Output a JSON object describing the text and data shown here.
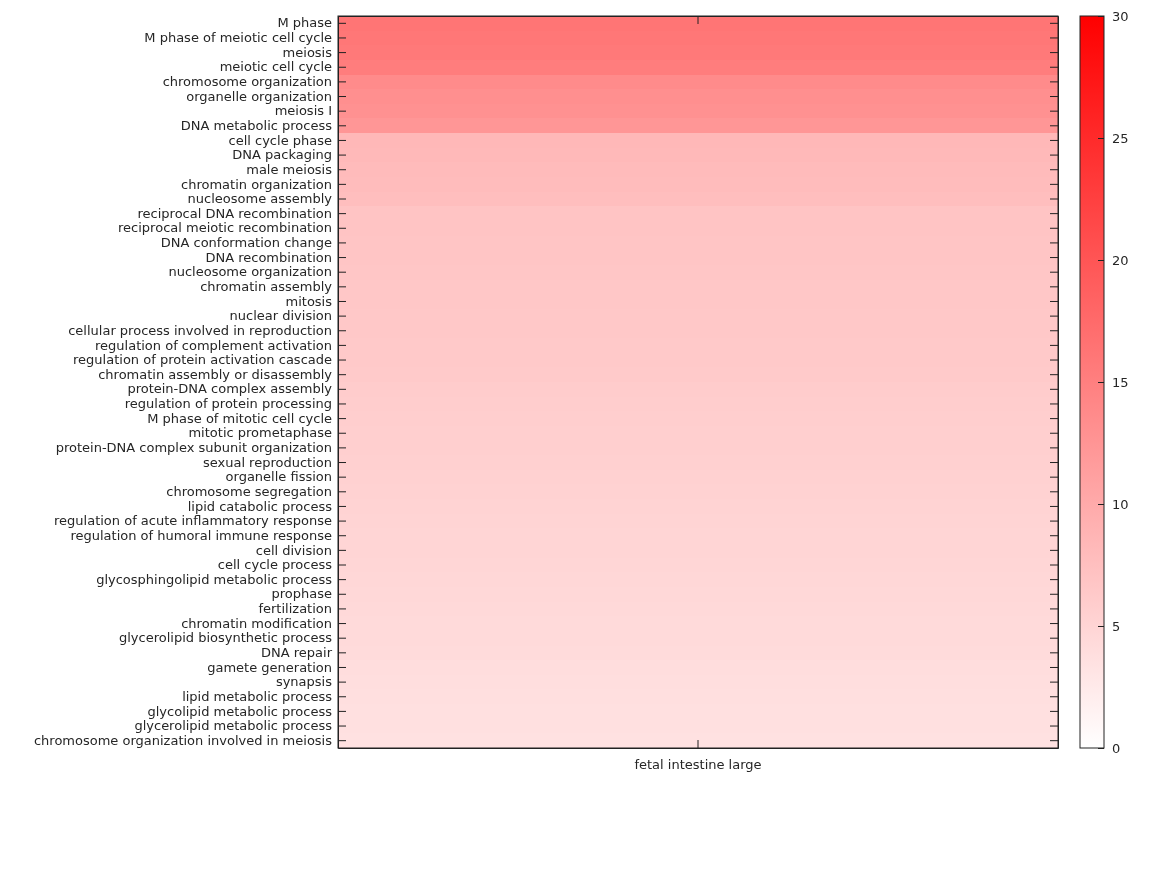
{
  "chart_data": {
    "type": "heatmap",
    "categories": [
      "fetal intestine large"
    ],
    "y_categories": [
      "M phase",
      "M phase of meiotic cell cycle",
      "meiosis",
      "meiotic cell cycle",
      "chromosome organization",
      "organelle organization",
      "meiosis I",
      "DNA metabolic process",
      "cell cycle phase",
      "DNA packaging",
      "male meiosis",
      "chromatin organization",
      "nucleosome assembly",
      "reciprocal DNA recombination",
      "reciprocal meiotic recombination",
      "DNA conformation change",
      "DNA recombination",
      "nucleosome organization",
      "chromatin assembly",
      "mitosis",
      "nuclear division",
      "cellular process involved in reproduction",
      "regulation of complement activation",
      "regulation of protein activation cascade",
      "chromatin assembly or disassembly",
      "protein-DNA complex assembly",
      "regulation of protein processing",
      "M phase of mitotic cell cycle",
      "mitotic prometaphase",
      "protein-DNA complex subunit organization",
      "sexual reproduction",
      "organelle fission",
      "chromosome segregation",
      "lipid catabolic process",
      "regulation of acute inflammatory response",
      "regulation of humoral immune response",
      "cell division",
      "cell cycle process",
      "glycosphingolipid metabolic process",
      "prophase",
      "fertilization",
      "chromatin modification",
      "glycerolipid biosynthetic process",
      "DNA repair",
      "gamete generation",
      "synapsis",
      "lipid metabolic process",
      "glycolipid metabolic process",
      "glycerolipid metabolic process",
      "chromosome organization involved in meiosis"
    ],
    "cells": [
      [
        16.2
      ],
      [
        16.0
      ],
      [
        15.8
      ],
      [
        15.3
      ],
      [
        13.6
      ],
      [
        13.2
      ],
      [
        13.0
      ],
      [
        12.4
      ],
      [
        8.4
      ],
      [
        8.2
      ],
      [
        8.0
      ],
      [
        7.9
      ],
      [
        7.7
      ],
      [
        7.0
      ],
      [
        6.9
      ],
      [
        6.8
      ],
      [
        6.8
      ],
      [
        6.7
      ],
      [
        6.6
      ],
      [
        6.6
      ],
      [
        6.5
      ],
      [
        6.5
      ],
      [
        6.4
      ],
      [
        6.3
      ],
      [
        6.2
      ],
      [
        6.0
      ],
      [
        5.9
      ],
      [
        5.8
      ],
      [
        5.7
      ],
      [
        5.6
      ],
      [
        5.5
      ],
      [
        5.4
      ],
      [
        5.3
      ],
      [
        5.2
      ],
      [
        5.1
      ],
      [
        5.0
      ],
      [
        4.9
      ],
      [
        4.8
      ],
      [
        4.7
      ],
      [
        4.6
      ],
      [
        4.5
      ],
      [
        4.4
      ],
      [
        4.3
      ],
      [
        4.2
      ],
      [
        4.0
      ],
      [
        3.9
      ],
      [
        3.8
      ],
      [
        3.7
      ],
      [
        3.6
      ],
      [
        3.5
      ]
    ],
    "clim": [
      0,
      30
    ],
    "cticks": [
      0,
      5,
      10,
      15,
      20,
      25,
      30
    ],
    "grid": false
  }
}
